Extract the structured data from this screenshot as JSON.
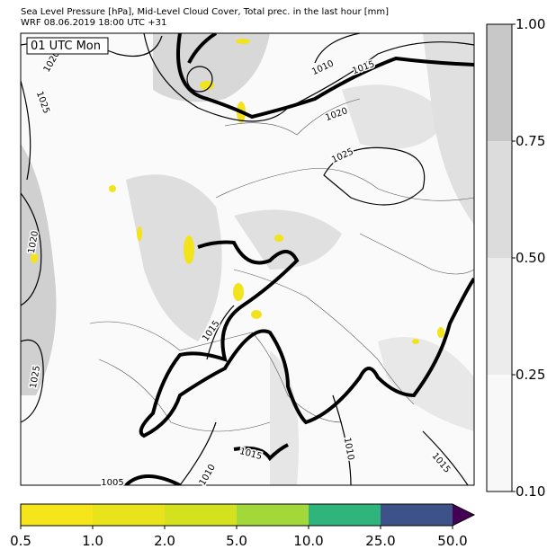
{
  "header": {
    "title": "Sea Level Pressure [hPa], Mid-Level Cloud Cover, Total prec. in the last hour [mm]",
    "subtitle": "WRF 08.06.2019 18:00 UTC +31"
  },
  "map": {
    "time_label": "01 UTC Mon",
    "contour_labels": [
      "1020",
      "1025",
      "1020",
      "1010",
      "1015",
      "1020",
      "1025",
      "1015",
      "1025",
      "1015",
      "1010",
      "1015",
      "1010",
      "1005"
    ]
  },
  "cloud_colorbar": {
    "ticks": [
      "1.00",
      "0.75",
      "0.50",
      "0.25",
      "0.10"
    ]
  },
  "precip_colorbar": {
    "ticks": [
      "0.5",
      "1.0",
      "2.0",
      "5.0",
      "10.0",
      "25.0",
      "50.0"
    ]
  }
}
